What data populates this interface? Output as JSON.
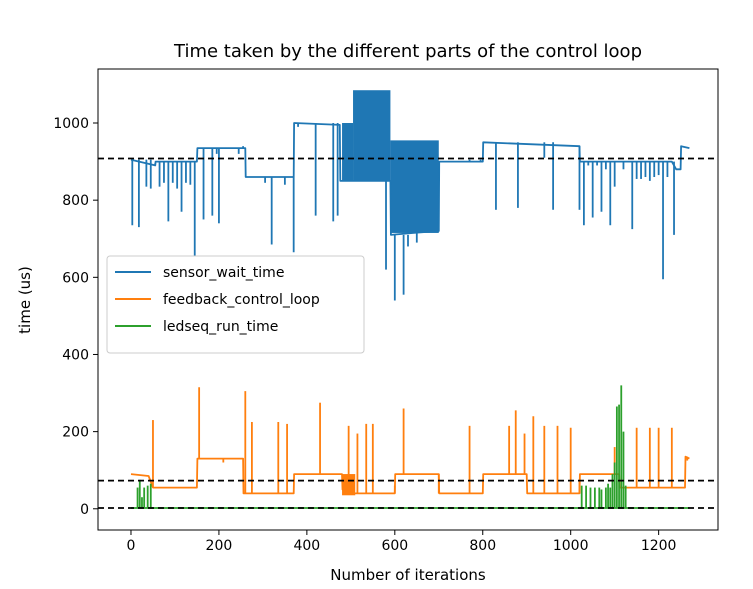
{
  "chart_data": {
    "type": "line",
    "title": "Time taken by the different parts of the control loop",
    "xlabel": "Number of iterations",
    "ylabel": "time (us)",
    "xlim": [
      -75,
      1335
    ],
    "ylim": [
      -55,
      1140
    ],
    "xticks": [
      0,
      200,
      400,
      600,
      800,
      1000,
      1200
    ],
    "yticks": [
      0,
      200,
      400,
      600,
      800,
      1000
    ],
    "grid": false,
    "legend_position": "center-left",
    "hlines": [
      {
        "y": 908,
        "color": "#000000",
        "style": "dashed"
      },
      {
        "y": 73,
        "color": "#000000",
        "style": "dashed"
      },
      {
        "y": 2,
        "color": "#000000",
        "style": "dashed"
      }
    ],
    "series": [
      {
        "name": "sensor_wait_time",
        "color": "#1f77b4",
        "base": [
          [
            0,
            905
          ],
          [
            55,
            890
          ],
          [
            56,
            900
          ],
          [
            150,
            900
          ],
          [
            151,
            935
          ],
          [
            260,
            935
          ],
          [
            261,
            860
          ],
          [
            370,
            860
          ],
          [
            371,
            1000
          ],
          [
            475,
            995
          ],
          [
            476,
            850
          ],
          [
            480,
            850
          ],
          [
            540,
            850
          ],
          [
            590,
            850
          ],
          [
            591,
            710
          ],
          [
            640,
            715
          ],
          [
            700,
            720
          ],
          [
            701,
            900
          ],
          [
            800,
            900
          ],
          [
            801,
            950
          ],
          [
            1020,
            940
          ],
          [
            1021,
            900
          ],
          [
            1230,
            900
          ],
          [
            1240,
            880
          ],
          [
            1250,
            880
          ],
          [
            1251,
            940
          ],
          [
            1270,
            935
          ]
        ],
        "bands": [
          {
            "x0": 480,
            "x1": 505,
            "low": 850,
            "high": 1000
          },
          {
            "x0": 505,
            "x1": 590,
            "low": 850,
            "high": 1085
          },
          {
            "x0": 590,
            "x1": 700,
            "low": 715,
            "high": 955
          }
        ],
        "spikes": [
          [
            3,
            735
          ],
          [
            18,
            730
          ],
          [
            35,
            835
          ],
          [
            45,
            830
          ],
          [
            55,
            895
          ],
          [
            65,
            835
          ],
          [
            75,
            845
          ],
          [
            85,
            745
          ],
          [
            95,
            845
          ],
          [
            105,
            830
          ],
          [
            115,
            770
          ],
          [
            125,
            845
          ],
          [
            135,
            840
          ],
          [
            145,
            655
          ],
          [
            165,
            750
          ],
          [
            185,
            760
          ],
          [
            195,
            920
          ],
          [
            200,
            740
          ],
          [
            245,
            920
          ],
          [
            255,
            940
          ],
          [
            305,
            845
          ],
          [
            320,
            685
          ],
          [
            350,
            840
          ],
          [
            370,
            665
          ],
          [
            380,
            990
          ],
          [
            420,
            760
          ],
          [
            440,
            1000
          ],
          [
            460,
            745
          ],
          [
            470,
            760
          ],
          [
            580,
            620
          ],
          [
            600,
            540
          ],
          [
            620,
            555
          ],
          [
            630,
            680
          ],
          [
            650,
            690
          ],
          [
            740,
            900
          ],
          [
            770,
            905
          ],
          [
            795,
            905
          ],
          [
            830,
            775
          ],
          [
            860,
            950
          ],
          [
            880,
            780
          ],
          [
            940,
            910
          ],
          [
            960,
            775
          ],
          [
            1020,
            775
          ],
          [
            1030,
            735
          ],
          [
            1040,
            890
          ],
          [
            1050,
            755
          ],
          [
            1060,
            890
          ],
          [
            1070,
            770
          ],
          [
            1080,
            880
          ],
          [
            1090,
            735
          ],
          [
            1100,
            835
          ],
          [
            1120,
            880
          ],
          [
            1140,
            725
          ],
          [
            1150,
            855
          ],
          [
            1160,
            855
          ],
          [
            1170,
            860
          ],
          [
            1180,
            850
          ],
          [
            1190,
            860
          ],
          [
            1200,
            865
          ],
          [
            1210,
            595
          ],
          [
            1220,
            860
          ],
          [
            1235,
            710
          ]
        ]
      },
      {
        "name": "feedback_control_loop",
        "color": "#ff7f0e",
        "base": [
          [
            0,
            90
          ],
          [
            40,
            85
          ],
          [
            50,
            55
          ],
          [
            150,
            55
          ],
          [
            151,
            130
          ],
          [
            255,
            130
          ],
          [
            256,
            40
          ],
          [
            370,
            40
          ],
          [
            371,
            90
          ],
          [
            480,
            90
          ],
          [
            481,
            50
          ],
          [
            505,
            40
          ],
          [
            600,
            40
          ],
          [
            601,
            90
          ],
          [
            700,
            90
          ],
          [
            701,
            40
          ],
          [
            800,
            40
          ],
          [
            801,
            90
          ],
          [
            900,
            90
          ],
          [
            901,
            40
          ],
          [
            1020,
            40
          ],
          [
            1021,
            90
          ],
          [
            1110,
            90
          ],
          [
            1111,
            55
          ],
          [
            1260,
            55
          ],
          [
            1261,
            135
          ],
          [
            1270,
            130
          ]
        ],
        "bands": [
          {
            "x0": 480,
            "x1": 510,
            "low": 35,
            "high": 90
          }
        ],
        "spikes": [
          [
            50,
            230
          ],
          [
            155,
            315
          ],
          [
            210,
            120
          ],
          [
            260,
            305
          ],
          [
            275,
            225
          ],
          [
            300,
            40
          ],
          [
            320,
            40
          ],
          [
            335,
            225
          ],
          [
            355,
            220
          ],
          [
            370,
            40
          ],
          [
            430,
            275
          ],
          [
            495,
            215
          ],
          [
            515,
            195
          ],
          [
            535,
            220
          ],
          [
            550,
            220
          ],
          [
            600,
            60
          ],
          [
            620,
            260
          ],
          [
            700,
            40
          ],
          [
            730,
            40
          ],
          [
            770,
            215
          ],
          [
            800,
            40
          ],
          [
            860,
            215
          ],
          [
            875,
            255
          ],
          [
            895,
            195
          ],
          [
            915,
            240
          ],
          [
            940,
            215
          ],
          [
            970,
            215
          ],
          [
            1000,
            210
          ],
          [
            1020,
            75
          ],
          [
            1100,
            160
          ],
          [
            1150,
            210
          ],
          [
            1180,
            210
          ],
          [
            1200,
            210
          ],
          [
            1230,
            210
          ],
          [
            1265,
            125
          ]
        ]
      },
      {
        "name": "ledseq_run_time",
        "color": "#2ca02c",
        "base": [
          [
            0,
            2
          ],
          [
            1270,
            2
          ]
        ],
        "bands": [],
        "spikes": [
          [
            15,
            55
          ],
          [
            20,
            75
          ],
          [
            25,
            30
          ],
          [
            30,
            55
          ],
          [
            38,
            60
          ],
          [
            45,
            65
          ],
          [
            1025,
            60
          ],
          [
            1035,
            60
          ],
          [
            1045,
            55
          ],
          [
            1055,
            55
          ],
          [
            1065,
            55
          ],
          [
            1070,
            50
          ],
          [
            1080,
            55
          ],
          [
            1085,
            65
          ],
          [
            1090,
            55
          ],
          [
            1095,
            90
          ],
          [
            1100,
            120
          ],
          [
            1105,
            265
          ],
          [
            1110,
            270
          ],
          [
            1115,
            320
          ],
          [
            1120,
            200
          ],
          [
            1125,
            60
          ]
        ]
      }
    ]
  }
}
